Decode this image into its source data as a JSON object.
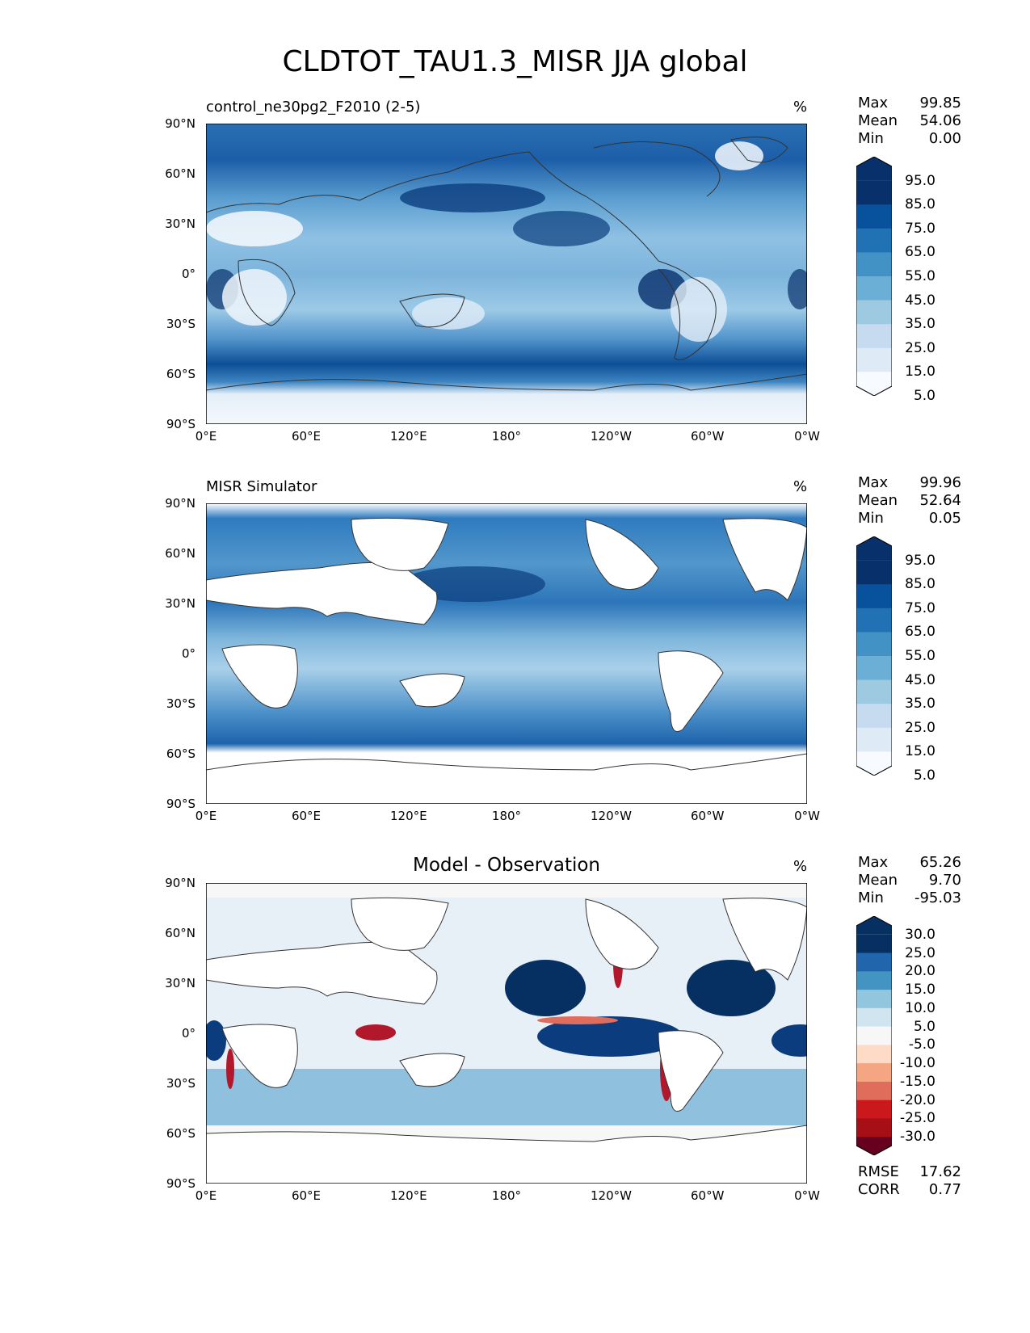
{
  "title": "CLDTOT_TAU1.3_MISR JJA global",
  "lon_ticks": [
    "0°E",
    "60°E",
    "120°E",
    "180°",
    "120°W",
    "60°W",
    "0°W"
  ],
  "lat_ticks": [
    "90°N",
    "60°N",
    "30°N",
    "0°",
    "30°S",
    "60°S",
    "90°S"
  ],
  "panels": [
    {
      "title_left": "control_ne30pg2_F2010 (2-5)",
      "title_center": "",
      "units": "%",
      "stats": [
        {
          "label": "Max",
          "value": "99.85"
        },
        {
          "label": "Mean",
          "value": "54.06"
        },
        {
          "label": "Min",
          "value": "0.00"
        }
      ],
      "colorbar": {
        "labels": [
          "95.0",
          "85.0",
          "75.0",
          "65.0",
          "55.0",
          "45.0",
          "35.0",
          "25.0",
          "15.0",
          "5.0"
        ],
        "colors": [
          "#f7fbff",
          "#deebf7",
          "#c6dbef",
          "#9ecae1",
          "#6baed6",
          "#4292c6",
          "#2171b5",
          "#08519c",
          "#08306b",
          "#08306b"
        ]
      }
    },
    {
      "title_left": "MISR Simulator",
      "title_center": "",
      "units": "%",
      "stats": [
        {
          "label": "Max",
          "value": "99.96"
        },
        {
          "label": "Mean",
          "value": "52.64"
        },
        {
          "label": "Min",
          "value": "0.05"
        }
      ],
      "colorbar": {
        "labels": [
          "95.0",
          "85.0",
          "75.0",
          "65.0",
          "55.0",
          "45.0",
          "35.0",
          "25.0",
          "15.0",
          "5.0"
        ],
        "colors": [
          "#f7fbff",
          "#deebf7",
          "#c6dbef",
          "#9ecae1",
          "#6baed6",
          "#4292c6",
          "#2171b5",
          "#08519c",
          "#08306b",
          "#08306b"
        ]
      }
    },
    {
      "title_left": "",
      "title_center": "Model - Observation",
      "units": "%",
      "stats": [
        {
          "label": "Max",
          "value": "65.26"
        },
        {
          "label": "Mean",
          "value": "9.70"
        },
        {
          "label": "Min",
          "value": "-95.03"
        }
      ],
      "colorbar": {
        "labels": [
          "30.0",
          "25.0",
          "20.0",
          "15.0",
          "10.0",
          "5.0",
          "-5.0",
          "-10.0",
          "-15.0",
          "-20.0",
          "-25.0",
          "-30.0"
        ],
        "colors": [
          "#67001f",
          "#a50f15",
          "#cb181d",
          "#e06c5b",
          "#f4a582",
          "#fddbc7",
          "#f7f7f7",
          "#d1e5f0",
          "#92c5de",
          "#4393c3",
          "#2166ac",
          "#053061",
          "#053061"
        ]
      },
      "footer": [
        {
          "label": "RMSE",
          "value": "17.62"
        },
        {
          "label": "CORR",
          "value": "0.77"
        }
      ]
    }
  ]
}
